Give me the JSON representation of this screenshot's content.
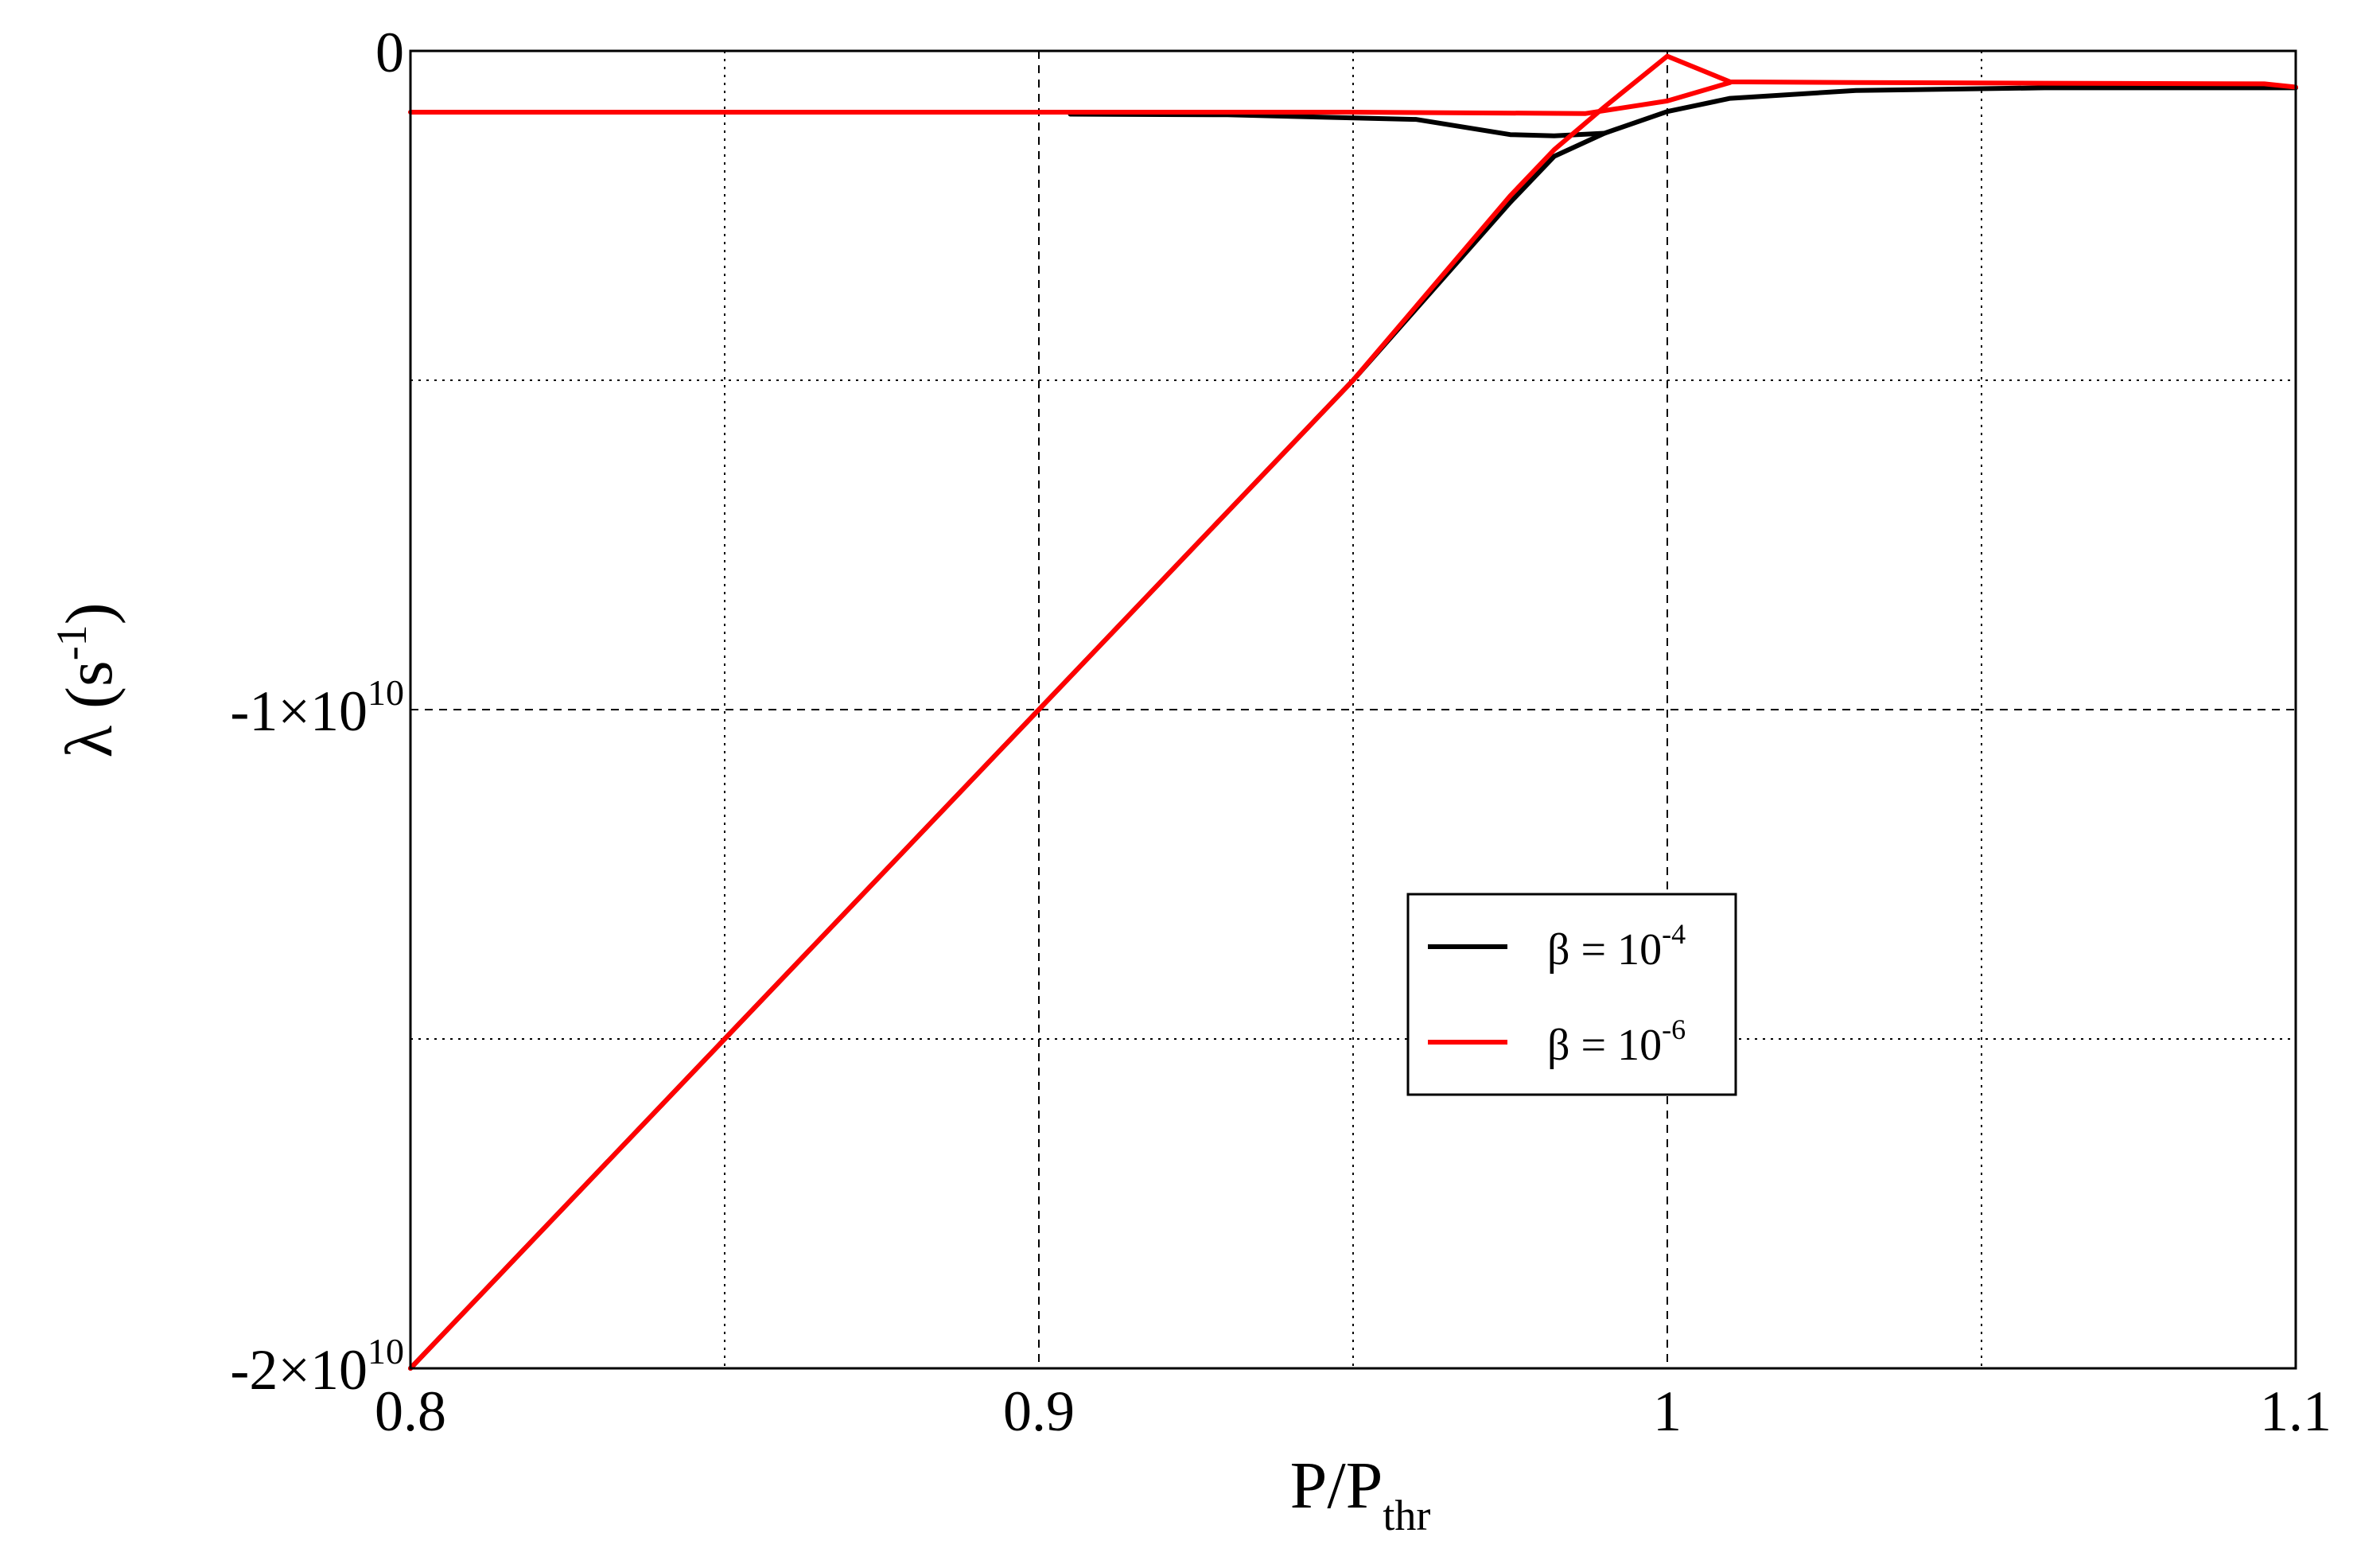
{
  "chart_data": {
    "type": "line",
    "xlabel": {
      "main": "P/P",
      "sub": "thr"
    },
    "ylabel": {
      "main": "λ (s",
      "sup": "-1",
      "close": ")"
    },
    "xlim": [
      0.8,
      1.1
    ],
    "ylim": [
      -20000000000,
      0
    ],
    "x_ticks": [
      {
        "value": 0.8,
        "label": "0.8"
      },
      {
        "value": 0.9,
        "label": "0.9"
      },
      {
        "value": 1.0,
        "label": "1"
      },
      {
        "value": 1.1,
        "label": "1.1"
      }
    ],
    "x_minor_grid": [
      0.85,
      0.95,
      1.05
    ],
    "y_ticks": [
      {
        "value": 0,
        "mantissa": "0",
        "exponent": ""
      },
      {
        "value": -10000000000,
        "mantissa": "-1×10",
        "exponent": "10"
      },
      {
        "value": -20000000000,
        "mantissa": "-2×10",
        "exponent": "10"
      }
    ],
    "y_minor_grid": [
      -5000000000,
      -15000000000
    ],
    "grid": true,
    "legend_position": "center-right",
    "series": [
      {
        "name": "β = 10^-4",
        "legend": {
          "main": "β = 10",
          "sup": "-4"
        },
        "color": "#000000",
        "lines": [
          [
            [
              0.8,
              -20000000000
            ],
            [
              0.85,
              -15000000000
            ],
            [
              0.9,
              -10000000000
            ],
            [
              0.95,
              -5000000000
            ],
            [
              0.975,
              -2300000000
            ],
            [
              0.982,
              -1600000000
            ],
            [
              0.99,
              -1250000000
            ],
            [
              1.0,
              -920000000
            ],
            [
              1.01,
              -720000000
            ],
            [
              1.03,
              -600000000
            ],
            [
              1.06,
              -560000000
            ],
            [
              1.1,
              -560000000
            ]
          ],
          [
            [
              0.905,
              -960000000
            ],
            [
              0.93,
              -970000000
            ],
            [
              0.96,
              -1040000000
            ],
            [
              0.975,
              -1270000000
            ],
            [
              0.982,
              -1290000000
            ],
            [
              0.99,
              -1250000000
            ]
          ]
        ]
      },
      {
        "name": "β = 10^-6",
        "legend": {
          "main": "β = 10",
          "sup": "-6"
        },
        "color": "#ff0000",
        "lines": [
          [
            [
              0.8,
              -20000000000
            ],
            [
              0.85,
              -15000000000
            ],
            [
              0.9,
              -10000000000
            ],
            [
              0.95,
              -5000000000
            ],
            [
              0.975,
              -2200000000
            ],
            [
              0.982,
              -1500000000
            ],
            [
              0.99,
              -850000000
            ],
            [
              1.0,
              -80000000
            ],
            [
              1.01,
              -470000000
            ],
            [
              1.03,
              -480000000
            ],
            [
              1.06,
              -490000000
            ],
            [
              1.095,
              -500000000
            ],
            [
              1.1,
              -550000000
            ]
          ],
          [
            [
              0.8,
              -930000000
            ],
            [
              0.9,
              -930000000
            ],
            [
              0.95,
              -930000000
            ],
            [
              0.987,
              -950000000
            ],
            [
              1.0,
              -760000000
            ],
            [
              1.01,
              -480000000
            ]
          ]
        ]
      }
    ]
  }
}
